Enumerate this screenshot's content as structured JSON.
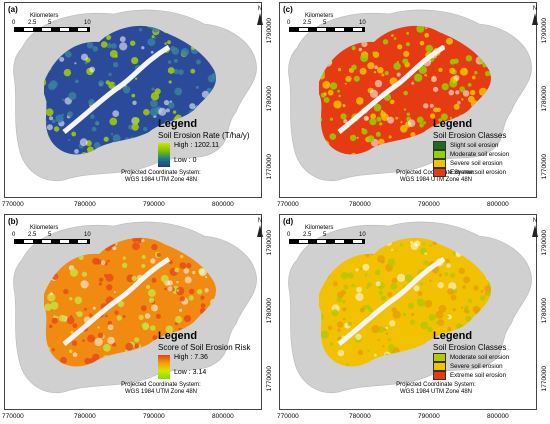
{
  "panels": [
    {
      "label": "(a)",
      "legend_title": "Legend",
      "legend_subtitle": "Soil Erosion Rate (T/ha/y)",
      "legend_type": "gradient",
      "gradient_colors": [
        "#c8e600",
        "#7fc000",
        "#1a7a8a",
        "#1f3a8a"
      ],
      "high_label": "High : 1202.11",
      "low_label": "Low : 0",
      "map_colors": {
        "base": "#2b4a9a",
        "mid": "#3b7fa0",
        "hi": "#a6d000"
      }
    },
    {
      "label": "(c)",
      "legend_title": "Legend",
      "legend_subtitle": "Soil Erosion Classes",
      "legend_type": "classes",
      "classes": [
        {
          "label": "Slight soil erosion",
          "color": "#1e6b1e"
        },
        {
          "label": "Moderate soil erosion",
          "color": "#8fd400"
        },
        {
          "label": "Severe soil erosion",
          "color": "#f2c200"
        },
        {
          "label": "Extreme soil erosion",
          "color": "#e63b12"
        }
      ],
      "map_colors": {
        "base": "#e63b12",
        "mid": "#8fd400",
        "hi": "#f2c200"
      }
    },
    {
      "label": "(b)",
      "legend_title": "Legend",
      "legend_subtitle": "Score of Soil Erosion Risk",
      "legend_type": "gradient",
      "gradient_colors": [
        "#e8401a",
        "#f2a000",
        "#d6e600",
        "#7fe000"
      ],
      "high_label": "High : 7.36",
      "low_label": "Low : 3.14",
      "map_colors": {
        "base": "#f08a10",
        "mid": "#e84a1a",
        "hi": "#c8e040"
      }
    },
    {
      "label": "(d)",
      "legend_title": "Legend",
      "legend_subtitle": "Soil Erosion Classes",
      "legend_type": "classes",
      "classes": [
        {
          "label": "Moderate soil erosion",
          "color": "#b6c800"
        },
        {
          "label": "Severe soil erosion",
          "color": "#f2c200"
        },
        {
          "label": "Extreme soil erosion",
          "color": "#e63b12"
        }
      ],
      "map_colors": {
        "base": "#f2c200",
        "mid": "#b6c800",
        "hi": "#e8a000"
      }
    }
  ],
  "scale": {
    "unit": "Kilometers",
    "ticks": [
      "0",
      "2.5",
      "5",
      "10"
    ]
  },
  "north_label": "N",
  "projection": [
    "Projected Coordinate System:",
    "WGS 1984 UTM Zone 48N"
  ],
  "x_ticks": [
    "770000",
    "780000",
    "790000",
    "800000"
  ],
  "y_ticks": [
    "1790000",
    "1780000",
    "1770000"
  ],
  "outline_color": "#d0d0d0"
}
